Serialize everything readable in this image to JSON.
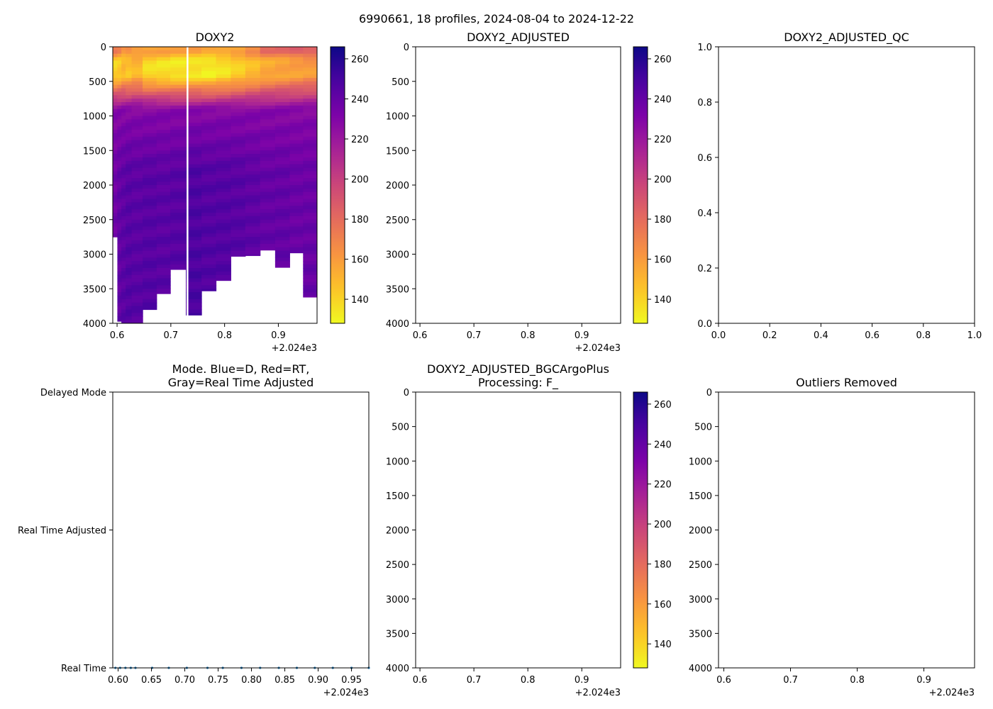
{
  "figure": {
    "suptitle": "6990661, 18 profiles, 2024-08-04 to 2024-12-22"
  },
  "chart_data": [
    {
      "id": "doxy2",
      "type": "heatmap",
      "title": "DOXY2",
      "x_range": [
        0.592,
        0.972
      ],
      "x_ticks": [
        0.6,
        0.7,
        0.8,
        0.9
      ],
      "x_tick_labels": [
        "0.6",
        "0.7",
        "0.8",
        "0.9"
      ],
      "x_offset_label": "+2.024e3",
      "y_range": [
        0,
        4000
      ],
      "y_inverted": true,
      "y_ticks": [
        0,
        500,
        1000,
        1500,
        2000,
        2500,
        3000,
        3500,
        4000
      ],
      "y_tick_labels": [
        "0",
        "500",
        "1000",
        "1500",
        "2000",
        "2500",
        "3000",
        "3500",
        "4000"
      ],
      "colorbar": {
        "colormap": "plasma_r",
        "range": [
          128,
          266
        ],
        "ticks": [
          140,
          160,
          180,
          200,
          220,
          240,
          260
        ],
        "tick_labels": [
          "140",
          "160",
          "180",
          "200",
          "220",
          "240",
          "260"
        ]
      },
      "profiles": [
        {
          "x": 0.597,
          "max_depth": 2750,
          "surface": 182,
          "oxymin": 140,
          "deep": 236
        },
        {
          "x": 0.604,
          "max_depth": 3970,
          "surface": 178,
          "oxymin": 142,
          "deep": 240
        },
        {
          "x": 0.612,
          "max_depth": 4000,
          "surface": 170,
          "oxymin": 148,
          "deep": 242
        },
        {
          "x": 0.62,
          "max_depth": 4000,
          "surface": 176,
          "oxymin": 145,
          "deep": 244
        },
        {
          "x": 0.634,
          "max_depth": 4000,
          "surface": 172,
          "oxymin": 150,
          "deep": 243
        },
        {
          "x": 0.661,
          "max_depth": 3800,
          "surface": 170,
          "oxymin": 138,
          "deep": 244
        },
        {
          "x": 0.686,
          "max_depth": 3570,
          "surface": 168,
          "oxymin": 136,
          "deep": 243
        },
        {
          "x": 0.712,
          "max_depth": 3220,
          "surface": 166,
          "oxymin": 134,
          "deep": 244
        },
        {
          "x": 0.744,
          "max_depth": 3880,
          "surface": 168,
          "oxymin": 134,
          "deep": 247
        },
        {
          "x": 0.77,
          "max_depth": 3530,
          "surface": 166,
          "oxymin": 132,
          "deep": 245
        },
        {
          "x": 0.798,
          "max_depth": 3380,
          "surface": 168,
          "oxymin": 136,
          "deep": 245
        },
        {
          "x": 0.825,
          "max_depth": 3030,
          "surface": 170,
          "oxymin": 142,
          "deep": 244
        },
        {
          "x": 0.852,
          "max_depth": 3020,
          "surface": 176,
          "oxymin": 148,
          "deep": 242
        },
        {
          "x": 0.88,
          "max_depth": 2940,
          "surface": 188,
          "oxymin": 154,
          "deep": 240
        },
        {
          "x": 0.908,
          "max_depth": 3190,
          "surface": 190,
          "oxymin": 156,
          "deep": 240
        },
        {
          "x": 0.934,
          "max_depth": 2980,
          "surface": 196,
          "oxymin": 158,
          "deep": 238
        },
        {
          "x": 0.958,
          "max_depth": 3620,
          "surface": 196,
          "oxymin": 160,
          "deep": 238
        }
      ],
      "gap_line_x": 0.731
    },
    {
      "id": "doxy2_adjusted",
      "type": "heatmap",
      "title": "DOXY2_ADJUSTED",
      "x_range": [
        0.592,
        0.972
      ],
      "x_ticks": [
        0.6,
        0.7,
        0.8,
        0.9
      ],
      "x_tick_labels": [
        "0.6",
        "0.7",
        "0.8",
        "0.9"
      ],
      "x_offset_label": "+2.024e3",
      "y_range": [
        0,
        4000
      ],
      "y_inverted": true,
      "y_ticks": [
        0,
        500,
        1000,
        1500,
        2000,
        2500,
        3000,
        3500,
        4000
      ],
      "y_tick_labels": [
        "0",
        "500",
        "1000",
        "1500",
        "2000",
        "2500",
        "3000",
        "3500",
        "4000"
      ],
      "colorbar": {
        "colormap": "plasma_r",
        "range": [
          128,
          266
        ],
        "ticks": [
          140,
          160,
          180,
          200,
          220,
          240,
          260
        ],
        "tick_labels": [
          "140",
          "160",
          "180",
          "200",
          "220",
          "240",
          "260"
        ]
      },
      "profiles": []
    },
    {
      "id": "doxy2_adjusted_qc",
      "type": "scatter",
      "title": "DOXY2_ADJUSTED_QC",
      "x_range": [
        0,
        1
      ],
      "x_ticks": [
        0,
        0.2,
        0.4,
        0.6,
        0.8,
        1.0
      ],
      "x_tick_labels": [
        "0.0",
        "0.2",
        "0.4",
        "0.6",
        "0.8",
        "1.0"
      ],
      "y_range": [
        0,
        1
      ],
      "y_inverted": false,
      "y_ticks": [
        0,
        0.2,
        0.4,
        0.6,
        0.8,
        1.0
      ],
      "y_tick_labels": [
        "0.0",
        "0.2",
        "0.4",
        "0.6",
        "0.8",
        "1.0"
      ],
      "points": []
    },
    {
      "id": "mode",
      "type": "scatter",
      "title_lines": [
        "Mode. Blue=D, Red=RT,",
        "Gray=Real Time Adjusted"
      ],
      "x_range": [
        0.592,
        0.976
      ],
      "x_ticks": [
        0.6,
        0.65,
        0.7,
        0.75,
        0.8,
        0.85,
        0.9,
        0.95
      ],
      "x_tick_labels": [
        "0.60",
        "0.65",
        "0.70",
        "0.75",
        "0.80",
        "0.85",
        "0.90",
        "0.95"
      ],
      "x_offset_label": "+2.024e3",
      "y_range": [
        0,
        2
      ],
      "y_inverted": false,
      "y_ticks": [
        0,
        1,
        2
      ],
      "y_tick_labels": [
        "Real Time",
        "Real Time Adjusted",
        "Delayed Mode"
      ],
      "points": [
        {
          "x": 0.596,
          "y": 0
        },
        {
          "x": 0.603,
          "y": 0
        },
        {
          "x": 0.611,
          "y": 0
        },
        {
          "x": 0.619,
          "y": 0
        },
        {
          "x": 0.626,
          "y": 0
        },
        {
          "x": 0.651,
          "y": 0
        },
        {
          "x": 0.676,
          "y": 0
        },
        {
          "x": 0.703,
          "y": 0
        },
        {
          "x": 0.734,
          "y": 0
        },
        {
          "x": 0.757,
          "y": 0
        },
        {
          "x": 0.785,
          "y": 0
        },
        {
          "x": 0.813,
          "y": 0
        },
        {
          "x": 0.841,
          "y": 0
        },
        {
          "x": 0.868,
          "y": 0
        },
        {
          "x": 0.895,
          "y": 0
        },
        {
          "x": 0.922,
          "y": 0
        },
        {
          "x": 0.95,
          "y": 0
        },
        {
          "x": 0.976,
          "y": 0
        }
      ],
      "point_color": "#1f77b4"
    },
    {
      "id": "bgcargoplus",
      "type": "heatmap",
      "title_lines": [
        "DOXY2_ADJUSTED_BGCArgoPlus",
        "Processing: F_"
      ],
      "x_range": [
        0.592,
        0.972
      ],
      "x_ticks": [
        0.6,
        0.7,
        0.8,
        0.9
      ],
      "x_tick_labels": [
        "0.6",
        "0.7",
        "0.8",
        "0.9"
      ],
      "x_offset_label": "+2.024e3",
      "y_range": [
        0,
        4000
      ],
      "y_inverted": true,
      "y_ticks": [
        0,
        500,
        1000,
        1500,
        2000,
        2500,
        3000,
        3500,
        4000
      ],
      "y_tick_labels": [
        "0",
        "500",
        "1000",
        "1500",
        "2000",
        "2500",
        "3000",
        "3500",
        "4000"
      ],
      "colorbar": {
        "colormap": "plasma_r",
        "range": [
          128,
          266
        ],
        "ticks": [
          140,
          160,
          180,
          200,
          220,
          240,
          260
        ],
        "tick_labels": [
          "140",
          "160",
          "180",
          "200",
          "220",
          "240",
          "260"
        ]
      },
      "profiles": []
    },
    {
      "id": "outliers",
      "type": "scatter",
      "title": "Outliers Removed",
      "x_range": [
        0.592,
        0.976
      ],
      "x_ticks": [
        0.6,
        0.7,
        0.8,
        0.9
      ],
      "x_tick_labels": [
        "0.6",
        "0.7",
        "0.8",
        "0.9"
      ],
      "x_offset_label": "+2.024e3",
      "y_range": [
        0,
        4000
      ],
      "y_inverted": true,
      "y_ticks": [
        0,
        500,
        1000,
        1500,
        2000,
        2500,
        3000,
        3500,
        4000
      ],
      "y_tick_labels": [
        "0",
        "500",
        "1000",
        "1500",
        "2000",
        "2500",
        "3000",
        "3500",
        "4000"
      ],
      "points": []
    }
  ]
}
